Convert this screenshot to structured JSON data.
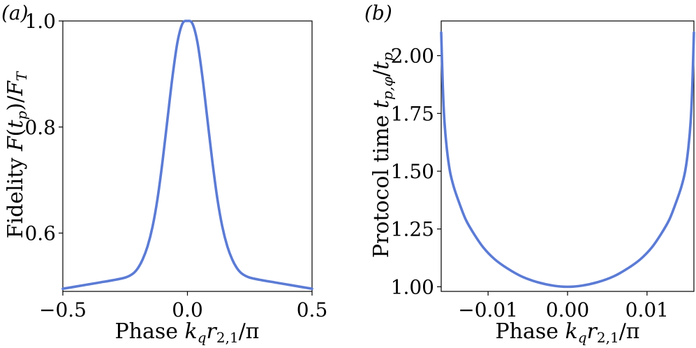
{
  "chart_data": [
    {
      "type": "line",
      "panel_label": "(a)",
      "xlabel": "Phase k_q r_{2,1}/π",
      "ylabel": "Fidelity F(t_p)/F_T",
      "xlim": [
        -0.5,
        0.5
      ],
      "ylim": [
        0.49,
        1.0
      ],
      "xticks": [
        -0.5,
        0.0,
        0.5
      ],
      "xtick_labels": [
        "−0.5",
        "0.0",
        "0.5"
      ],
      "yticks": [
        0.6,
        0.8,
        1.0
      ],
      "ytick_labels": [
        "0.6",
        "0.8",
        "1.0"
      ],
      "grid": false,
      "color": "#5b7bd5",
      "series": [
        {
          "name": "fidelity",
          "x": [
            -0.5,
            -0.45,
            -0.4,
            -0.35,
            -0.3,
            -0.25,
            -0.22,
            -0.2,
            -0.18,
            -0.16,
            -0.14,
            -0.12,
            -0.1,
            -0.08,
            -0.06,
            -0.04,
            -0.02,
            0.0,
            0.02,
            0.04,
            0.06,
            0.08,
            0.1,
            0.12,
            0.14,
            0.16,
            0.18,
            0.2,
            0.22,
            0.25,
            0.3,
            0.35,
            0.4,
            0.45,
            0.5
          ],
          "y": [
            0.495,
            0.499,
            0.503,
            0.507,
            0.511,
            0.516,
            0.523,
            0.533,
            0.55,
            0.575,
            0.612,
            0.665,
            0.735,
            0.815,
            0.895,
            0.96,
            0.995,
            1.0,
            0.995,
            0.96,
            0.895,
            0.815,
            0.735,
            0.665,
            0.612,
            0.575,
            0.55,
            0.533,
            0.523,
            0.516,
            0.511,
            0.507,
            0.503,
            0.499,
            0.495
          ]
        }
      ]
    },
    {
      "type": "line",
      "panel_label": "(b)",
      "xlabel": "Phase k_q r_{2,1}/π",
      "ylabel": "Protocol time t_{p,φ}/t_p",
      "xlim": [
        -0.0159,
        0.0159
      ],
      "ylim": [
        0.98,
        2.15
      ],
      "xticks": [
        -0.01,
        0.0,
        0.01
      ],
      "xtick_labels": [
        "−0.01",
        "0.00",
        "0.01"
      ],
      "yticks": [
        1.0,
        1.25,
        1.5,
        1.75,
        2.0
      ],
      "ytick_labels": [
        "1.00",
        "1.25",
        "1.50",
        "1.75",
        "2.00"
      ],
      "grid": false,
      "color": "#5b7bd5",
      "series": [
        {
          "name": "protocol time",
          "x": [
            -0.0159,
            -0.0157,
            -0.0155,
            -0.0152,
            -0.0148,
            -0.0143,
            -0.0136,
            -0.0128,
            -0.0118,
            -0.0106,
            -0.0092,
            -0.0076,
            -0.0058,
            -0.0038,
            -0.0018,
            0.0,
            0.0018,
            0.0038,
            0.0058,
            0.0076,
            0.0092,
            0.0106,
            0.0118,
            0.0128,
            0.0136,
            0.0143,
            0.0148,
            0.0152,
            0.0155,
            0.0157,
            0.0159
          ],
          "y": [
            2.1,
            1.87,
            1.72,
            1.6,
            1.5,
            1.43,
            1.36,
            1.29,
            1.23,
            1.17,
            1.12,
            1.08,
            1.045,
            1.02,
            1.005,
            1.0,
            1.005,
            1.02,
            1.045,
            1.08,
            1.12,
            1.17,
            1.23,
            1.29,
            1.36,
            1.43,
            1.5,
            1.6,
            1.72,
            1.87,
            2.1
          ]
        }
      ]
    }
  ]
}
